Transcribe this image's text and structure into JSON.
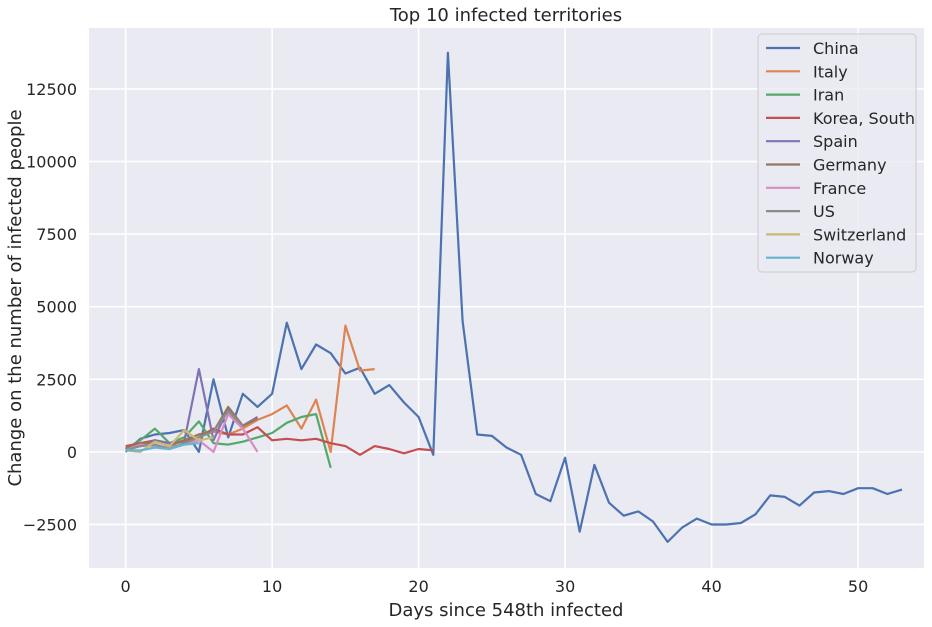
{
  "chart_data": {
    "type": "line",
    "title": "Top 10 infected territories",
    "xlabel": "Days since 548th infected",
    "ylabel": "Change on the number of infected people",
    "xlim": [
      -2.5,
      54.5
    ],
    "ylim": [
      -4000,
      14600
    ],
    "xticks": [
      0,
      10,
      20,
      30,
      40,
      50
    ],
    "yticks": [
      -2500,
      0,
      2500,
      5000,
      7500,
      10000,
      12500
    ],
    "xtick_labels": [
      "0",
      "10",
      "20",
      "30",
      "40",
      "50"
    ],
    "ytick_labels": [
      "−2500",
      "0",
      "2500",
      "5000",
      "7500",
      "10000",
      "12500"
    ],
    "grid": true,
    "legend_position": "top-right",
    "series": [
      {
        "name": "China",
        "color": "#4c72b0",
        "values": [
          0,
          450,
          600,
          650,
          750,
          0,
          2500,
          500,
          2000,
          1550,
          2000,
          4450,
          2850,
          3700,
          3400,
          2700,
          2900,
          2000,
          2300,
          1700,
          1200,
          -100,
          13750,
          4500,
          600,
          550,
          150,
          -100,
          -1450,
          -1700,
          -200,
          -2750,
          -450,
          -1750,
          -2200,
          -2050,
          -2400,
          -3100,
          -2600,
          -2300,
          -2500,
          -2500,
          -2450,
          -2150,
          -1500,
          -1550,
          -1850,
          -1400,
          -1350,
          -1450,
          -1250,
          -1250,
          -1450,
          -1300
        ]
      },
      {
        "name": "Italy",
        "color": "#dd8452",
        "values": [
          100,
          200,
          400,
          300,
          400,
          600,
          700,
          600,
          800,
          1100,
          1300,
          1600,
          800,
          1800,
          0,
          4350,
          2800,
          2850
        ]
      },
      {
        "name": "Iran",
        "color": "#55a868",
        "values": [
          100,
          400,
          800,
          300,
          500,
          1050,
          300,
          250,
          350,
          500,
          650,
          1000,
          1200,
          1300,
          -550
        ]
      },
      {
        "name": "Korea, South",
        "color": "#c44e52",
        "values": [
          200,
          300,
          400,
          300,
          350,
          500,
          800,
          600,
          600,
          850,
          400,
          450,
          400,
          450,
          300,
          200,
          -100,
          200,
          100,
          -50,
          100,
          50
        ]
      },
      {
        "name": "Spain",
        "color": "#8172b3",
        "values": [
          100,
          200,
          400,
          300,
          350,
          2850,
          400,
          1500,
          900,
          1200
        ]
      },
      {
        "name": "Germany",
        "color": "#937860",
        "values": [
          150,
          250,
          350,
          200,
          400,
          600,
          700,
          1550,
          900,
          1150
        ]
      },
      {
        "name": "France",
        "color": "#da8bc3",
        "values": [
          50,
          250,
          200,
          150,
          250,
          400,
          0,
          1300,
          800,
          0
        ]
      },
      {
        "name": "US",
        "color": "#8c8c8c",
        "values": [
          50,
          200,
          250,
          100,
          300,
          500,
          700,
          1400,
          900
        ]
      },
      {
        "name": "Switzerland",
        "color": "#ccb974",
        "values": [
          50,
          0,
          350,
          200,
          750,
          400,
          500
        ]
      },
      {
        "name": "Norway",
        "color": "#64b5cd",
        "values": [
          50,
          50,
          150,
          100,
          250,
          300
        ]
      }
    ]
  }
}
